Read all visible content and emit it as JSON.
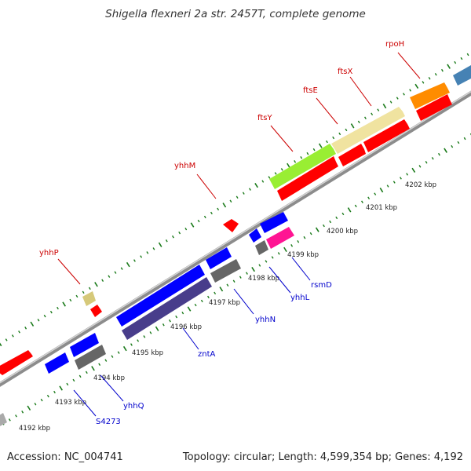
{
  "title": "Shigella flexneri 2a str. 2457T, complete genome",
  "footer": {
    "accession": "Accession: NC_004741",
    "summary": "Topology: circular; Length: 4,599,354 bp; Genes: 4,192"
  },
  "colors": {
    "backbone": "#999999",
    "tick": "#1a7a1a",
    "forward_label": "#cc0000",
    "reverse_label": "#0000cc"
  },
  "scale_labels": [
    "4192 kbp",
    "4193 kbp",
    "4194 kbp",
    "4195 kbp",
    "4196 kbp",
    "4197 kbp",
    "4198 kbp",
    "4199 kbp",
    "4200 kbp",
    "4201 kbp",
    "4202 kbp"
  ],
  "forward_labels": [
    "yhhP",
    "yhhM",
    "ftsY",
    "ftsE",
    "ftsX",
    "rpoH"
  ],
  "reverse_labels": [
    "S4273",
    "yhhQ",
    "zntA",
    "yhhN",
    "yhhL",
    "rsmD"
  ]
}
